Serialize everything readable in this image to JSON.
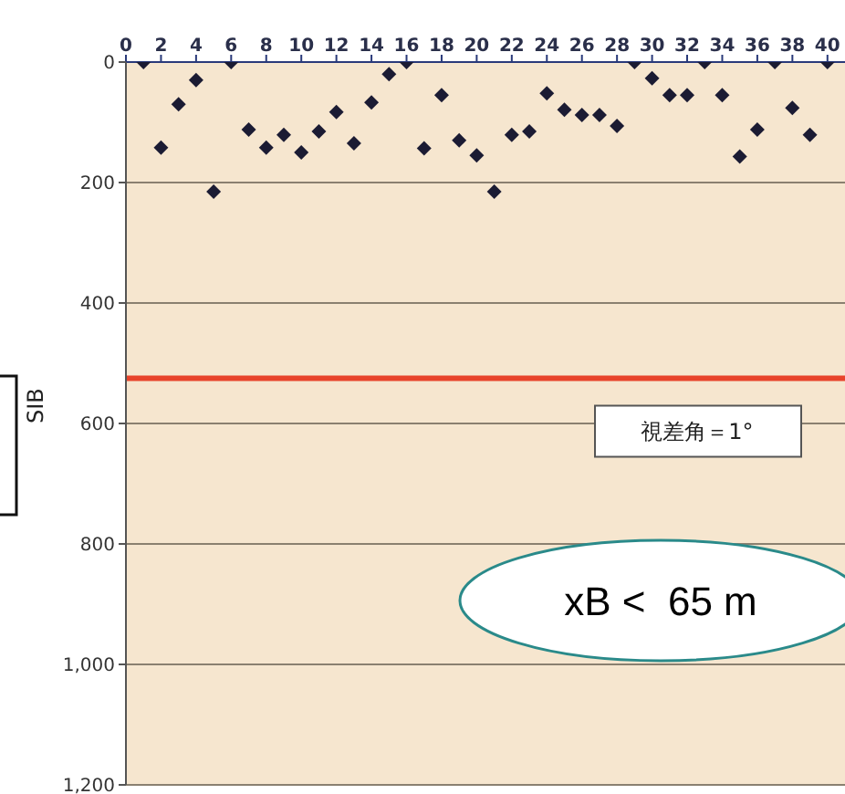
{
  "chart_data": {
    "type": "scatter",
    "ylabel": "SIB",
    "x": [
      1,
      2,
      3,
      4,
      5,
      6,
      7,
      8,
      9,
      10,
      11,
      12,
      13,
      14,
      15,
      16,
      17,
      18,
      19,
      20,
      21,
      22,
      23,
      24,
      25,
      26,
      27,
      28,
      29,
      30,
      31,
      32,
      33,
      34,
      35,
      36,
      37,
      38,
      39,
      40
    ],
    "values": [
      0,
      142,
      70,
      30,
      215,
      0,
      112,
      142,
      121,
      150,
      115,
      83,
      135,
      67,
      20,
      0,
      143,
      55,
      130,
      155,
      215,
      121,
      115,
      52,
      79,
      88,
      88,
      106,
      0,
      27,
      55,
      55,
      0,
      55,
      157,
      112,
      0,
      76,
      121,
      0
    ],
    "color": "#1b1b33",
    "marker": "diamond",
    "xlim": [
      0,
      41
    ],
    "xticks": [
      0,
      2,
      4,
      6,
      8,
      10,
      12,
      14,
      16,
      18,
      20,
      22,
      24,
      26,
      28,
      30,
      32,
      34,
      36,
      38,
      40
    ],
    "ylim": [
      1200,
      0
    ],
    "yticks": [
      0,
      200,
      400,
      600,
      800,
      {
        "value": 1000,
        "label": "1,000"
      },
      {
        "value": 1200,
        "label": "1,200"
      }
    ],
    "grid": "y",
    "ref_lines": [
      {
        "axis": "y",
        "value": 525,
        "label": "視差角＝1°",
        "color": "#e8432a"
      }
    ],
    "annotations": [
      "xB <  65 m"
    ]
  }
}
